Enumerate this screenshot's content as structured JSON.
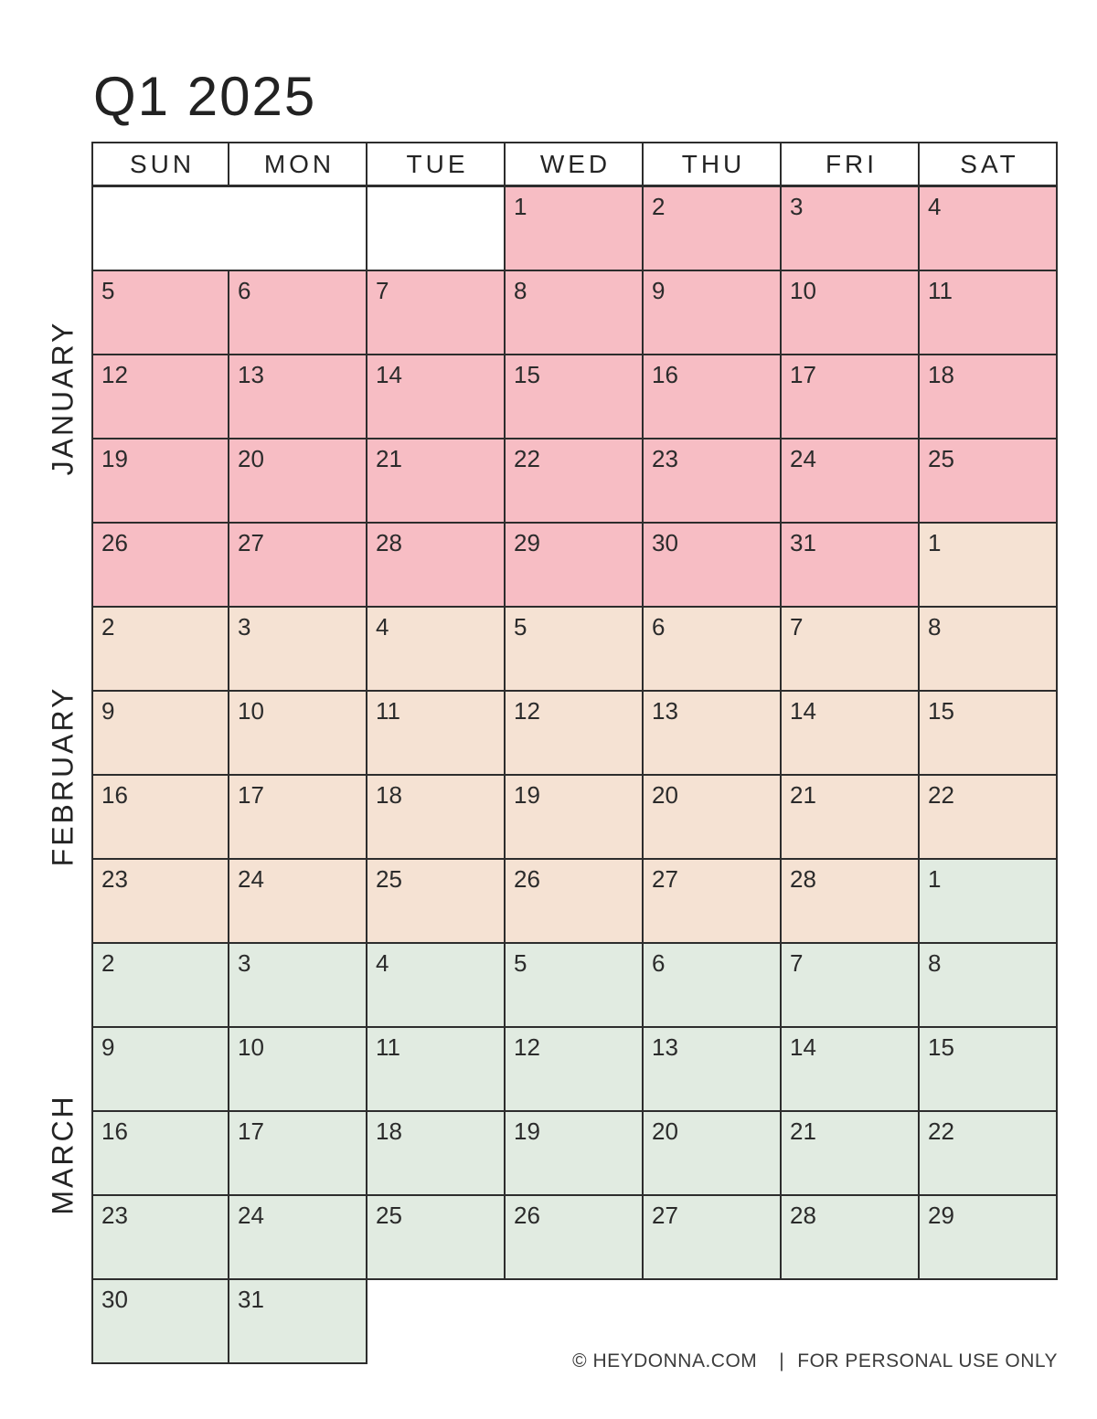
{
  "title": "Q1 2025",
  "weekdays": [
    "SUN",
    "MON",
    "TUE",
    "WED",
    "THU",
    "FRI",
    "SAT"
  ],
  "colors": {
    "jan": "#f7bdc4",
    "feb": "#f5e2d3",
    "mar": "#e1ebe1",
    "blank": "#ffffff"
  },
  "months": [
    {
      "name": "JANUARY"
    },
    {
      "name": "FEBRUARY"
    },
    {
      "name": "MARCH"
    }
  ],
  "rows": [
    {
      "cells": [
        {
          "d": "",
          "m": "blank",
          "span": 2
        },
        {
          "d": "",
          "m": "blank"
        },
        {
          "d": "1",
          "m": "jan"
        },
        {
          "d": "2",
          "m": "jan"
        },
        {
          "d": "3",
          "m": "jan"
        },
        {
          "d": "4",
          "m": "jan"
        }
      ]
    },
    {
      "cells": [
        {
          "d": "5",
          "m": "jan"
        },
        {
          "d": "6",
          "m": "jan"
        },
        {
          "d": "7",
          "m": "jan"
        },
        {
          "d": "8",
          "m": "jan"
        },
        {
          "d": "9",
          "m": "jan"
        },
        {
          "d": "10",
          "m": "jan"
        },
        {
          "d": "11",
          "m": "jan"
        }
      ]
    },
    {
      "cells": [
        {
          "d": "12",
          "m": "jan"
        },
        {
          "d": "13",
          "m": "jan"
        },
        {
          "d": "14",
          "m": "jan"
        },
        {
          "d": "15",
          "m": "jan"
        },
        {
          "d": "16",
          "m": "jan"
        },
        {
          "d": "17",
          "m": "jan"
        },
        {
          "d": "18",
          "m": "jan"
        }
      ]
    },
    {
      "cells": [
        {
          "d": "19",
          "m": "jan"
        },
        {
          "d": "20",
          "m": "jan"
        },
        {
          "d": "21",
          "m": "jan"
        },
        {
          "d": "22",
          "m": "jan"
        },
        {
          "d": "23",
          "m": "jan"
        },
        {
          "d": "24",
          "m": "jan"
        },
        {
          "d": "25",
          "m": "jan"
        }
      ]
    },
    {
      "cells": [
        {
          "d": "26",
          "m": "jan"
        },
        {
          "d": "27",
          "m": "jan"
        },
        {
          "d": "28",
          "m": "jan"
        },
        {
          "d": "29",
          "m": "jan"
        },
        {
          "d": "30",
          "m": "jan"
        },
        {
          "d": "31",
          "m": "jan"
        },
        {
          "d": "1",
          "m": "feb"
        }
      ]
    },
    {
      "cells": [
        {
          "d": "2",
          "m": "feb"
        },
        {
          "d": "3",
          "m": "feb"
        },
        {
          "d": "4",
          "m": "feb"
        },
        {
          "d": "5",
          "m": "feb"
        },
        {
          "d": "6",
          "m": "feb"
        },
        {
          "d": "7",
          "m": "feb"
        },
        {
          "d": "8",
          "m": "feb"
        }
      ]
    },
    {
      "cells": [
        {
          "d": "9",
          "m": "feb"
        },
        {
          "d": "10",
          "m": "feb"
        },
        {
          "d": "11",
          "m": "feb"
        },
        {
          "d": "12",
          "m": "feb"
        },
        {
          "d": "13",
          "m": "feb"
        },
        {
          "d": "14",
          "m": "feb"
        },
        {
          "d": "15",
          "m": "feb"
        }
      ]
    },
    {
      "cells": [
        {
          "d": "16",
          "m": "feb"
        },
        {
          "d": "17",
          "m": "feb"
        },
        {
          "d": "18",
          "m": "feb"
        },
        {
          "d": "19",
          "m": "feb"
        },
        {
          "d": "20",
          "m": "feb"
        },
        {
          "d": "21",
          "m": "feb"
        },
        {
          "d": "22",
          "m": "feb"
        }
      ]
    },
    {
      "cells": [
        {
          "d": "23",
          "m": "feb"
        },
        {
          "d": "24",
          "m": "feb"
        },
        {
          "d": "25",
          "m": "feb"
        },
        {
          "d": "26",
          "m": "feb"
        },
        {
          "d": "27",
          "m": "feb"
        },
        {
          "d": "28",
          "m": "feb"
        },
        {
          "d": "1",
          "m": "mar"
        }
      ]
    },
    {
      "cells": [
        {
          "d": "2",
          "m": "mar"
        },
        {
          "d": "3",
          "m": "mar"
        },
        {
          "d": "4",
          "m": "mar"
        },
        {
          "d": "5",
          "m": "mar"
        },
        {
          "d": "6",
          "m": "mar"
        },
        {
          "d": "7",
          "m": "mar"
        },
        {
          "d": "8",
          "m": "mar"
        }
      ]
    },
    {
      "cells": [
        {
          "d": "9",
          "m": "mar"
        },
        {
          "d": "10",
          "m": "mar"
        },
        {
          "d": "11",
          "m": "mar"
        },
        {
          "d": "12",
          "m": "mar"
        },
        {
          "d": "13",
          "m": "mar"
        },
        {
          "d": "14",
          "m": "mar"
        },
        {
          "d": "15",
          "m": "mar"
        }
      ]
    },
    {
      "cells": [
        {
          "d": "16",
          "m": "mar"
        },
        {
          "d": "17",
          "m": "mar"
        },
        {
          "d": "18",
          "m": "mar"
        },
        {
          "d": "19",
          "m": "mar"
        },
        {
          "d": "20",
          "m": "mar"
        },
        {
          "d": "21",
          "m": "mar"
        },
        {
          "d": "22",
          "m": "mar"
        }
      ]
    },
    {
      "cells": [
        {
          "d": "23",
          "m": "mar"
        },
        {
          "d": "24",
          "m": "mar"
        },
        {
          "d": "25",
          "m": "mar"
        },
        {
          "d": "26",
          "m": "mar"
        },
        {
          "d": "27",
          "m": "mar"
        },
        {
          "d": "28",
          "m": "mar"
        },
        {
          "d": "29",
          "m": "mar"
        }
      ]
    },
    {
      "cells": [
        {
          "d": "30",
          "m": "mar"
        },
        {
          "d": "31",
          "m": "mar"
        }
      ]
    }
  ],
  "footer": {
    "copyright": "© HEYDONNA.COM",
    "divider": "|",
    "notice": "FOR PERSONAL USE ONLY"
  }
}
